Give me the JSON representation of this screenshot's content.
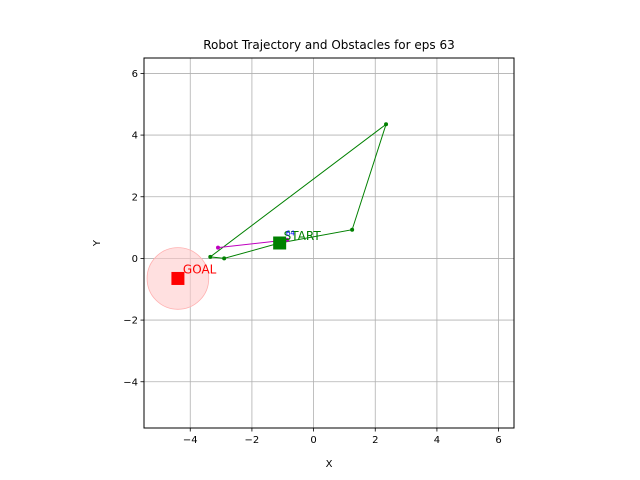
{
  "chart_data": {
    "type": "line",
    "title": "Robot Trajectory and Obstacles for eps 63",
    "xlabel": "X",
    "ylabel": "Y",
    "xlim": [
      -5.5,
      6.5
    ],
    "ylim": [
      -5.5,
      6.5
    ],
    "xticks": [
      -4,
      -2,
      0,
      2,
      4,
      6
    ],
    "yticks": [
      -4,
      -2,
      0,
      2,
      4,
      6
    ],
    "xtick_labels": [
      "−4",
      "−2",
      "0",
      "2",
      "4",
      "6"
    ],
    "ytick_labels": [
      "−4",
      "−2",
      "0",
      "2",
      "4",
      "6"
    ],
    "grid": true,
    "series": [
      {
        "color": "#008000",
        "x": [
          -1.1,
          1.25,
          2.35,
          -3.35,
          -2.9,
          -1.1
        ],
        "y": [
          0.5,
          0.93,
          4.35,
          0.05,
          0.0,
          0.5
        ]
      },
      {
        "color": "#bf00bf",
        "x": [
          -3.1,
          -0.85
        ],
        "y": [
          0.35,
          0.6
        ]
      }
    ],
    "markers": {
      "start": {
        "x": -1.1,
        "y": 0.5,
        "label": "START",
        "color": "#008000"
      },
      "goal": {
        "x": -4.4,
        "y": -0.65,
        "label": "GOAL",
        "color": "#ff0000",
        "radius": 1.0,
        "fill": "#ffcccc"
      }
    },
    "annotations": [
      {
        "text": "64",
        "x": -0.9,
        "y": 0.75,
        "color": "#0000ff"
      }
    ]
  }
}
